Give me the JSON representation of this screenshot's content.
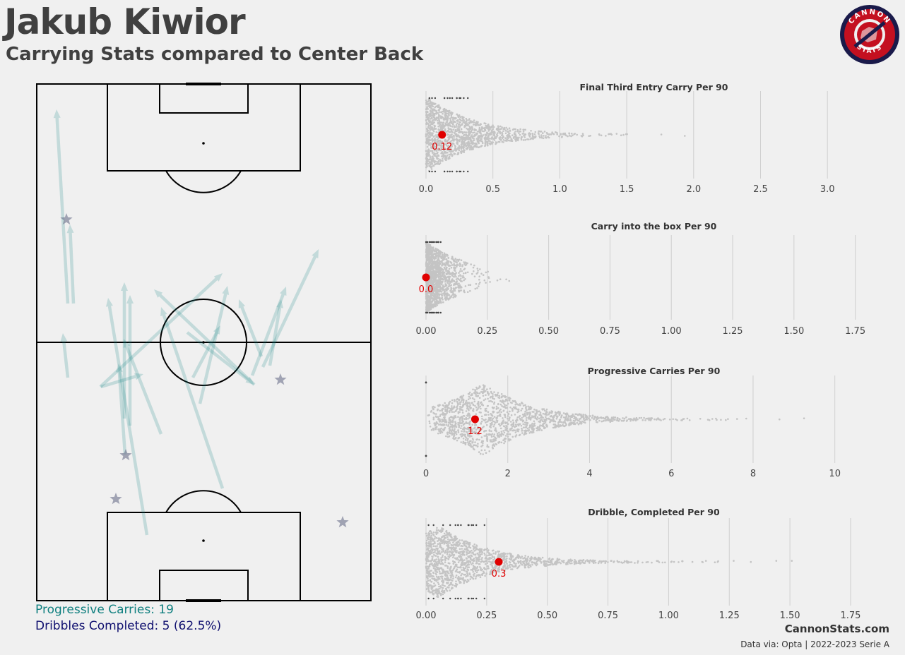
{
  "header": {
    "title": "Jakub Kiwior",
    "subtitle": "Carrying Stats compared to Center Back",
    "logo_top": "CANNON",
    "logo_bottom": "STATS"
  },
  "legend": {
    "progressive": "Progressive Carries: 19",
    "dribbles": "Dribbles Completed: 5 (62.5%)"
  },
  "footer": {
    "site": "CannonStats.com",
    "source": "Data via: Opta | 2022-2023 Serie A"
  },
  "colors": {
    "carry": "#118080",
    "dribble_star": "#6b6f8a",
    "highlight": "#e00000",
    "swarm": "#c4c4c4"
  },
  "chart_data": [
    {
      "type": "scatter",
      "title": "Final Third Entry Carry Per 90",
      "xlim": [
        0,
        3.3
      ],
      "ticks": [
        "0.0",
        "0.5",
        "1.0",
        "1.5",
        "2.0",
        "2.5",
        "3.0"
      ],
      "tick_values": [
        0,
        0.5,
        1.0,
        1.5,
        2.0,
        2.5,
        3.0
      ],
      "player_value": 0.12,
      "player_label": "0.12",
      "distribution_max": 3.3
    },
    {
      "type": "scatter",
      "title": "Carry into the box Per 90",
      "xlim": [
        0,
        1.8
      ],
      "ticks": [
        "0.00",
        "0.25",
        "0.50",
        "0.75",
        "1.00",
        "1.25",
        "1.50",
        "1.75"
      ],
      "tick_values": [
        0,
        0.25,
        0.5,
        0.75,
        1.0,
        1.25,
        1.5,
        1.75
      ],
      "player_value": 0.0,
      "player_label": "0.0",
      "distribution_max": 1.81
    },
    {
      "type": "scatter",
      "title": "Progressive Carries Per 90",
      "xlim": [
        0,
        10.8
      ],
      "ticks": [
        "0",
        "2",
        "4",
        "6",
        "8",
        "10"
      ],
      "tick_values": [
        0,
        2,
        4,
        6,
        8,
        10
      ],
      "player_value": 1.2,
      "player_label": "1.2",
      "distribution_max": 10.8
    },
    {
      "type": "scatter",
      "title": "Dribble, Completed Per 90",
      "xlim": [
        0,
        1.82
      ],
      "ticks": [
        "0.00",
        "0.25",
        "0.50",
        "0.75",
        "1.00",
        "1.25",
        "1.50",
        "1.75"
      ],
      "tick_values": [
        0,
        0.25,
        0.5,
        0.75,
        1.0,
        1.25,
        1.5,
        1.75
      ],
      "player_value": 0.3,
      "player_label": "0.3",
      "distribution_max": 1.81
    }
  ],
  "carries": [
    {
      "x1": 96,
      "y1": 430,
      "x2": 80,
      "y2": 155
    },
    {
      "x1": 104,
      "y1": 430,
      "x2": 99,
      "y2": 318
    },
    {
      "x1": 96,
      "y1": 535,
      "x2": 89,
      "y2": 472
    },
    {
      "x1": 142,
      "y1": 548,
      "x2": 315,
      "y2": 387
    },
    {
      "x1": 208,
      "y1": 758,
      "x2": 153,
      "y2": 422
    },
    {
      "x1": 176,
      "y1": 593,
      "x2": 176,
      "y2": 400
    },
    {
      "x1": 184,
      "y1": 603,
      "x2": 184,
      "y2": 418
    },
    {
      "x1": 143,
      "y1": 548,
      "x2": 203,
      "y2": 530
    },
    {
      "x1": 177,
      "y1": 644,
      "x2": 168,
      "y2": 515
    },
    {
      "x1": 228,
      "y1": 615,
      "x2": 175,
      "y2": 480
    },
    {
      "x1": 315,
      "y1": 692,
      "x2": 228,
      "y2": 435
    },
    {
      "x1": 360,
      "y1": 545,
      "x2": 218,
      "y2": 410
    },
    {
      "x1": 283,
      "y1": 572,
      "x2": 322,
      "y2": 405
    },
    {
      "x1": 273,
      "y1": 535,
      "x2": 312,
      "y2": 461
    },
    {
      "x1": 357,
      "y1": 532,
      "x2": 405,
      "y2": 406
    },
    {
      "x1": 372,
      "y1": 520,
      "x2": 451,
      "y2": 353
    },
    {
      "x1": 370,
      "y1": 505,
      "x2": 338,
      "y2": 424
    },
    {
      "x1": 382,
      "y1": 518,
      "x2": 398,
      "y2": 424
    },
    {
      "x1": 265,
      "y1": 471,
      "x2": 360,
      "y2": 545
    }
  ],
  "dribbles": [
    {
      "x": 94,
      "y": 311
    },
    {
      "x": 397,
      "y": 538
    },
    {
      "x": 178,
      "y": 645
    },
    {
      "x": 164,
      "y": 707
    },
    {
      "x": 485,
      "y": 740
    }
  ]
}
